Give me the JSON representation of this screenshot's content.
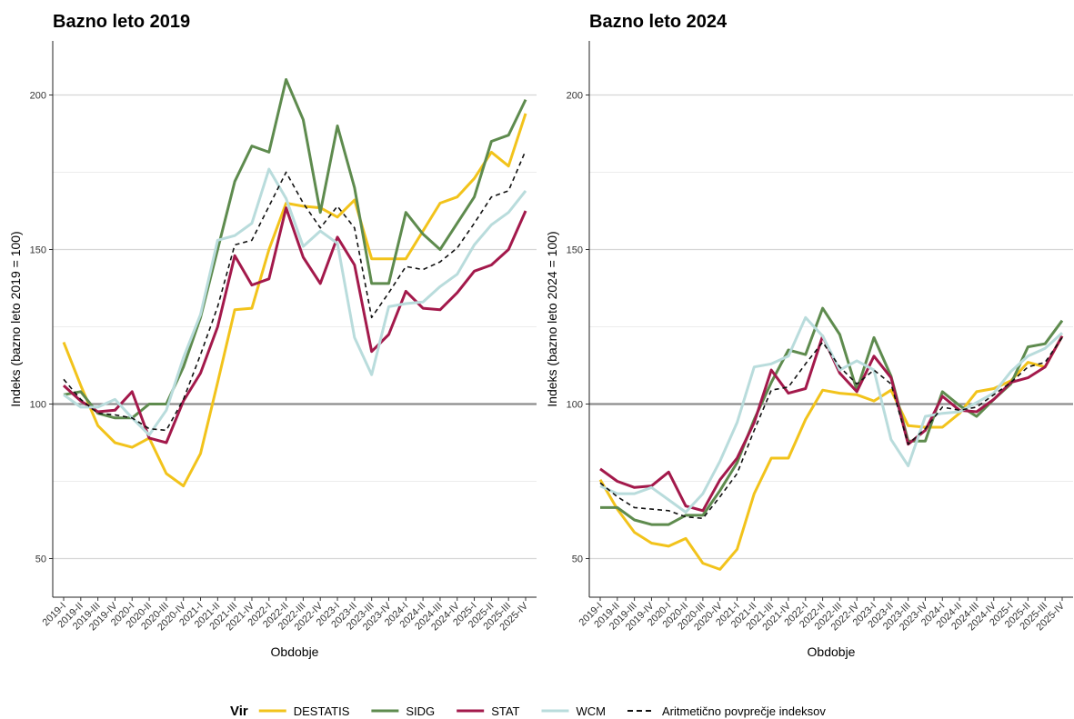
{
  "chart_data": [
    {
      "type": "line",
      "title": "Bazno leto 2019",
      "x_label": "Obdobje",
      "y_label": "Indeks (bazno leto 2019 = 100)",
      "categories": [
        "2019-I",
        "2019-II",
        "2019-III",
        "2019-IV",
        "2020-I",
        "2020-II",
        "2020-III",
        "2020-IV",
        "2021-I",
        "2021-II",
        "2021-III",
        "2021-IV",
        "2022-I",
        "2022-II",
        "2022-III",
        "2022-IV",
        "2023-I",
        "2023-II",
        "2023-III",
        "2023-IV",
        "2024-I",
        "2024-II",
        "2024-III",
        "2024-IV",
        "2025-I",
        "2025-II",
        "2025-III",
        "2025-IV"
      ],
      "ylim": [
        37.5,
        217.5
      ],
      "yticks": [
        50,
        100,
        150,
        200
      ],
      "grid": true,
      "hline": 100,
      "series": [
        {
          "name": "DESTATIS",
          "color": "#f2c31b",
          "values": [
            120,
            106,
            93,
            87.5,
            86,
            89,
            77.5,
            73.5,
            84,
            107,
            130.5,
            131,
            150,
            165,
            164,
            163.5,
            160.5,
            166,
            147,
            147,
            147,
            156,
            165,
            167,
            173,
            181.5,
            177,
            194
          ]
        },
        {
          "name": "SIDG",
          "color": "#5e8b4e",
          "values": [
            103,
            104,
            97,
            95.5,
            95.5,
            100,
            100,
            112,
            128,
            150,
            172,
            183.5,
            181.5,
            205,
            192,
            162,
            190,
            170,
            139,
            139,
            162,
            155,
            150,
            158.5,
            167,
            185,
            187,
            198.5
          ]
        },
        {
          "name": "STAT",
          "color": "#a3194b",
          "values": [
            106,
            101,
            97.5,
            98,
            104,
            89,
            87.5,
            101,
            110,
            125,
            148,
            138.5,
            140.5,
            163.5,
            147.5,
            139,
            154,
            145,
            117,
            122.5,
            136.5,
            131,
            130.5,
            136,
            143,
            145,
            150,
            162.5
          ]
        },
        {
          "name": "WCM",
          "color": "#b9dcdc",
          "values": [
            103,
            99,
            99,
            101.5,
            95.5,
            90,
            98,
            115,
            129,
            153,
            154.5,
            158.5,
            176,
            166.5,
            151,
            156,
            152,
            121.5,
            109.5,
            131.5,
            132.5,
            133,
            138,
            142,
            151.5,
            158,
            162,
            169
          ]
        },
        {
          "name": "Aritmetično povprečje indeksov",
          "color": "#111111",
          "dashed": true,
          "values": [
            108,
            101.5,
            97,
            96.5,
            95.5,
            92,
            91.5,
            101.5,
            116,
            131.5,
            151.5,
            153,
            164,
            175,
            165,
            157,
            164,
            157,
            128,
            136,
            144.5,
            143.5,
            146,
            150.5,
            158.5,
            167,
            169,
            182
          ]
        }
      ]
    },
    {
      "type": "line",
      "title": "Bazno leto 2024",
      "x_label": "Obdobje",
      "y_label": "Indeks (bazno leto 2024 = 100)",
      "categories": [
        "2019-I",
        "2019-II",
        "2019-III",
        "2019-IV",
        "2020-I",
        "2020-II",
        "2020-III",
        "2020-IV",
        "2021-I",
        "2021-II",
        "2021-III",
        "2021-IV",
        "2022-I",
        "2022-II",
        "2022-III",
        "2022-IV",
        "2023-I",
        "2023-II",
        "2023-III",
        "2023-IV",
        "2024-I",
        "2024-II",
        "2024-III",
        "2024-IV",
        "2025-I",
        "2025-II",
        "2025-III",
        "2025-IV"
      ],
      "ylim": [
        37.5,
        217.5
      ],
      "yticks": [
        50,
        100,
        150,
        200
      ],
      "grid": true,
      "hline": 100,
      "series": [
        {
          "name": "DESTATIS",
          "color": "#f2c31b",
          "values": [
            75.5,
            66,
            58.5,
            55,
            54,
            56.5,
            48.5,
            46.5,
            53,
            71,
            82.5,
            82.5,
            95,
            104.5,
            103.5,
            103,
            101,
            104.5,
            93,
            92.5,
            92.5,
            97,
            104,
            105,
            107.5,
            113.5,
            112,
            122
          ]
        },
        {
          "name": "SIDG",
          "color": "#5e8b4e",
          "values": [
            66.5,
            66.5,
            62.5,
            61,
            61,
            64,
            64,
            72,
            81,
            95,
            107,
            117.5,
            116,
            131,
            122.5,
            104.5,
            121.5,
            109,
            88,
            88,
            104,
            99.5,
            96,
            101.5,
            106.5,
            118.5,
            119.5,
            127
          ]
        },
        {
          "name": "STAT",
          "color": "#a3194b",
          "values": [
            79,
            75,
            73,
            73.5,
            78,
            67,
            65.5,
            75.5,
            82.5,
            94,
            111,
            103.5,
            105,
            122,
            110,
            104,
            115.5,
            108.5,
            87,
            91.5,
            102.5,
            98,
            97.5,
            101.5,
            107,
            108.5,
            112,
            122
          ]
        },
        {
          "name": "WCM",
          "color": "#b9dcdc",
          "values": [
            73.5,
            71,
            71,
            73,
            69,
            65,
            71,
            81.5,
            94,
            112,
            113,
            115.5,
            128,
            122,
            111,
            114,
            111,
            88.5,
            80,
            96,
            97,
            97.5,
            100.5,
            103.5,
            110.5,
            115.5,
            118,
            123
          ]
        },
        {
          "name": "Aritmetično povprečje indeksov",
          "color": "#111111",
          "dashed": true,
          "values": [
            74.5,
            70,
            66.5,
            66,
            65.5,
            63.5,
            63,
            70,
            77.5,
            91.5,
            104.5,
            105.5,
            113,
            120,
            112,
            106.5,
            111,
            106.5,
            87,
            92,
            99,
            98,
            99,
            103,
            107,
            112,
            113.5,
            121.5
          ]
        }
      ]
    }
  ],
  "legend": {
    "title": "Vir"
  }
}
